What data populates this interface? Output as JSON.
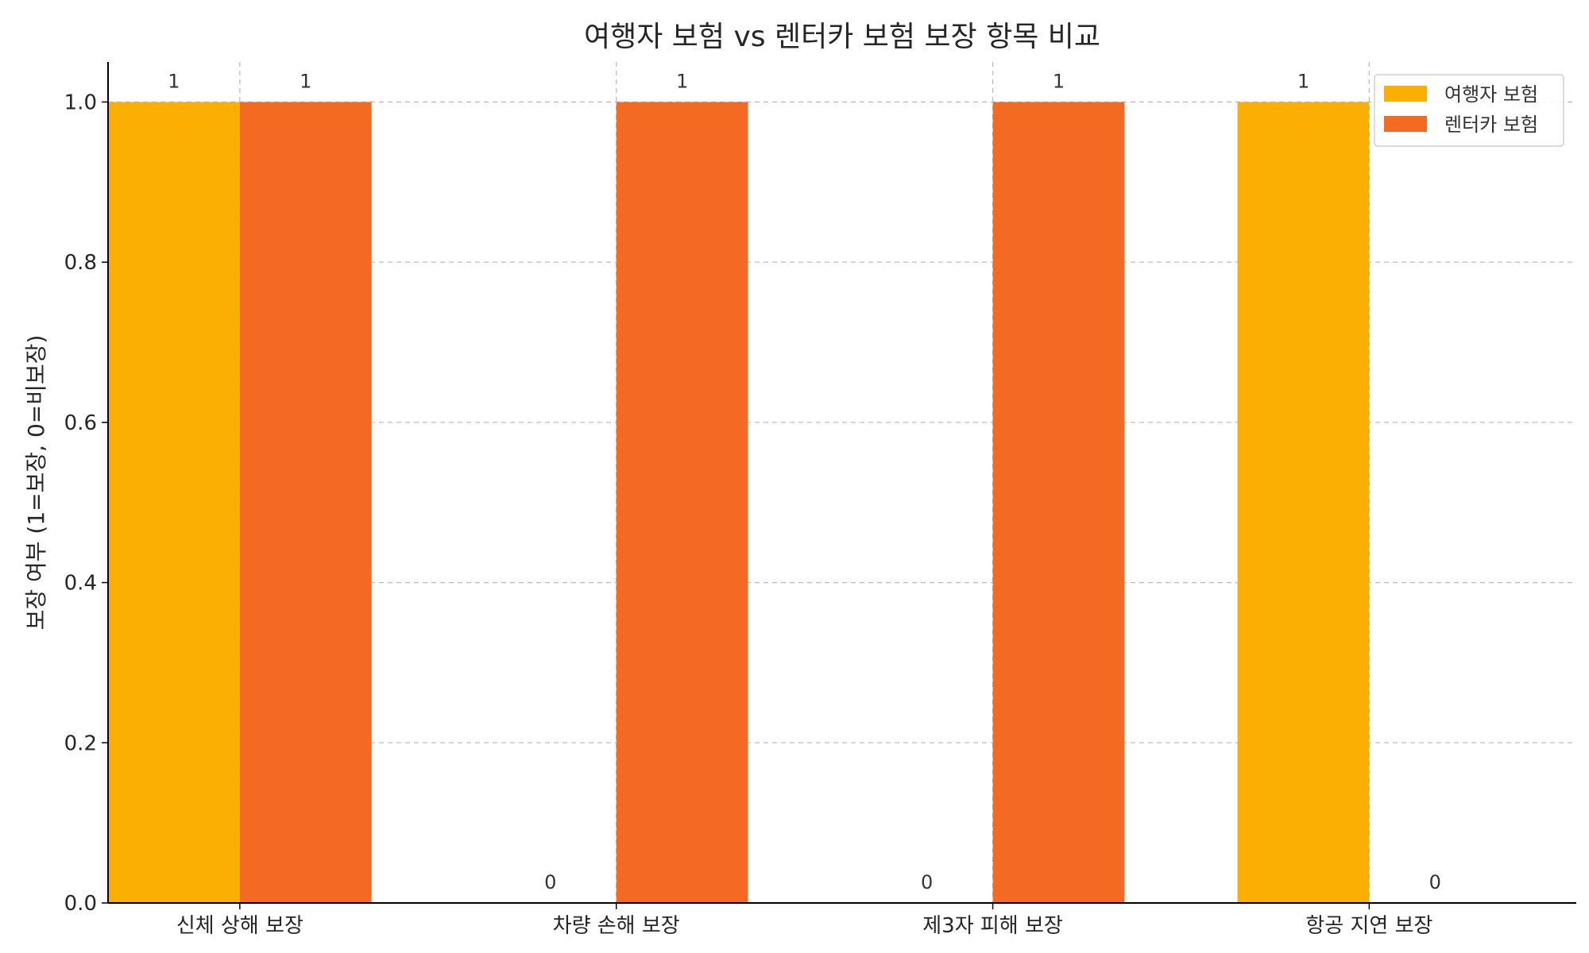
{
  "chart_data": {
    "type": "bar",
    "title": "여행자 보험 vs 렌터카 보험 보장 항목 비교",
    "xlabel": "",
    "ylabel": "보장 여부 (1=보장, 0=비보장)",
    "categories": [
      "신체 상해 보장",
      "차량 손해 보장",
      "제3자 피해 보장",
      "항공 지연 보장"
    ],
    "series": [
      {
        "name": "여행자 보험",
        "values": [
          1,
          0,
          0,
          1
        ],
        "color": "#FCAF03"
      },
      {
        "name": "렌터카 보험",
        "values": [
          1,
          1,
          1,
          0
        ],
        "color": "#F46A22"
      }
    ],
    "ylim": [
      0,
      1.05
    ],
    "yticks": [
      "0.0",
      "0.2",
      "0.4",
      "0.6",
      "0.8",
      "1.0"
    ],
    "grid": true,
    "legend_position": "top-right"
  }
}
